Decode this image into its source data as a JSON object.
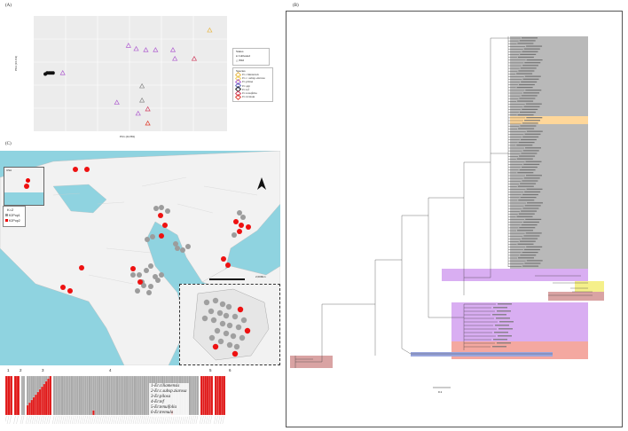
{
  "panels": {
    "a": "(A)",
    "b": "(B)",
    "c": "(C)"
  },
  "pca": {
    "xlabel": "PC1 (44.8%)",
    "ylabel": "PC2 (16.1%)",
    "status_title": "Status",
    "status_items": [
      "Cultivated",
      "Wild"
    ],
    "species_title": "Species",
    "species": [
      {
        "name": "Er. ciliamensis",
        "color": "#e8b84a"
      },
      {
        "name": "Er. c. subsp. ziarosa",
        "color": "#f0d060"
      },
      {
        "name": "Er. pilosa",
        "color": "#b060d0"
      },
      {
        "name": "Er. spp",
        "color": "#6070c0"
      },
      {
        "name": "Er. tef",
        "color": "#222222"
      },
      {
        "name": "Er. tenuifolia",
        "color": "#d04060"
      },
      {
        "name": "Er. tremula",
        "color": "#e04030"
      }
    ],
    "points": [
      {
        "x": 0.07,
        "y": 0.52,
        "c": "#111",
        "s": "dot"
      },
      {
        "x": 0.08,
        "y": 0.52,
        "c": "#111",
        "s": "dot"
      },
      {
        "x": 0.09,
        "y": 0.52,
        "c": "#111",
        "s": "dot"
      },
      {
        "x": 0.1,
        "y": 0.52,
        "c": "#111",
        "s": "dot"
      },
      {
        "x": 0.06,
        "y": 0.53,
        "c": "#111",
        "s": "dot"
      },
      {
        "x": 0.15,
        "y": 0.52,
        "c": "#b060d0",
        "s": "tri"
      },
      {
        "x": 0.49,
        "y": 0.27,
        "c": "#b060d0",
        "s": "tri"
      },
      {
        "x": 0.53,
        "y": 0.3,
        "c": "#b060d0",
        "s": "tri"
      },
      {
        "x": 0.58,
        "y": 0.31,
        "c": "#b060d0",
        "s": "tri"
      },
      {
        "x": 0.63,
        "y": 0.31,
        "c": "#b060d0",
        "s": "tri"
      },
      {
        "x": 0.72,
        "y": 0.31,
        "c": "#b060d0",
        "s": "tri"
      },
      {
        "x": 0.73,
        "y": 0.39,
        "c": "#b060d0",
        "s": "tri"
      },
      {
        "x": 0.83,
        "y": 0.39,
        "c": "#d04060",
        "s": "tri"
      },
      {
        "x": 0.91,
        "y": 0.13,
        "c": "#e8b84a",
        "s": "tri"
      },
      {
        "x": 0.56,
        "y": 0.64,
        "c": "#888",
        "s": "tri"
      },
      {
        "x": 0.43,
        "y": 0.79,
        "c": "#b060d0",
        "s": "tri"
      },
      {
        "x": 0.56,
        "y": 0.77,
        "c": "#888",
        "s": "tri"
      },
      {
        "x": 0.54,
        "y": 0.89,
        "c": "#b060d0",
        "s": "tri"
      },
      {
        "x": 0.59,
        "y": 0.85,
        "c": "#d04060",
        "s": "tri"
      },
      {
        "x": 0.59,
        "y": 0.98,
        "c": "#e04030",
        "s": "tri"
      }
    ]
  },
  "map": {
    "usa_label": "USA",
    "legend_title": "K=2",
    "legend_items": [
      "K2Pop1",
      "K2Pop2"
    ],
    "scale": "2,000km"
  },
  "structure": {
    "group_numbers": [
      "1",
      "2",
      "3",
      "4",
      "5",
      "6"
    ],
    "legend": [
      "1-Er.ciliamensis",
      "2-Er.c.subsp.ziarosa",
      "3-Er.pilosa",
      "4-Er.tef",
      "5-Er.tenuifolia",
      "6-Er.tremula"
    ]
  },
  "tree": {
    "scale_label": "0.1",
    "colors": {
      "gray": "#b9b9b9",
      "orange": "#ffd79a",
      "purple": "#d9aef2",
      "yellow": "#f5f08a",
      "rose": "#d9a3a3",
      "salmon": "#f4a8a0",
      "blue": "#9aa6dd"
    }
  }
}
